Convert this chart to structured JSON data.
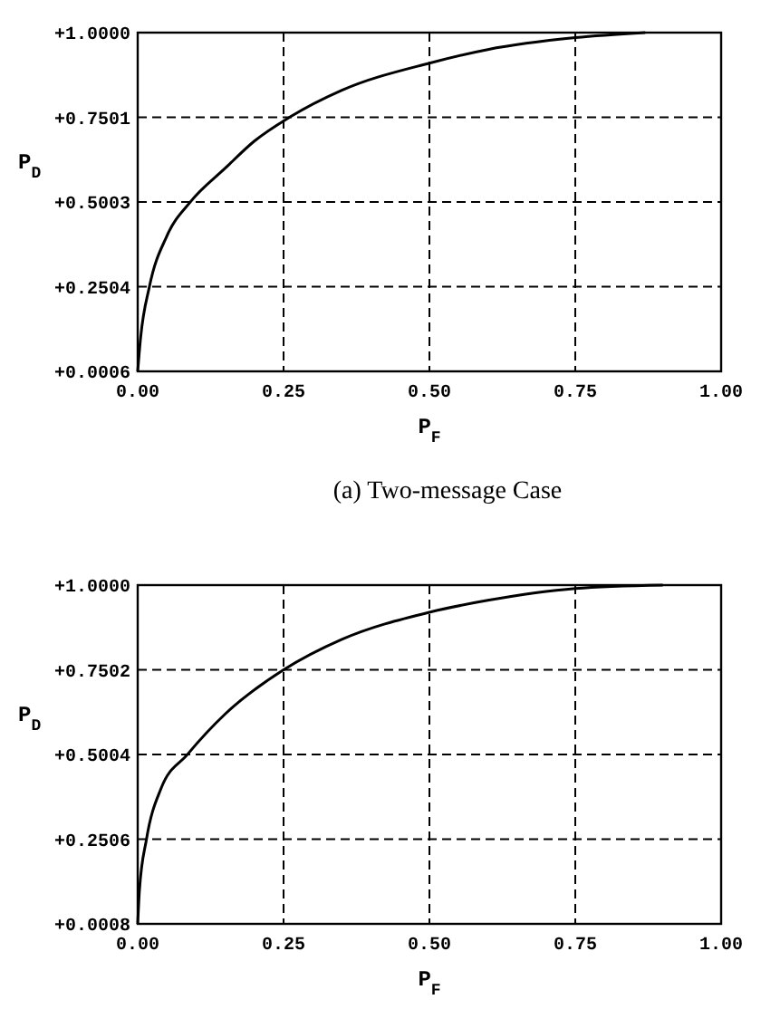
{
  "chart_data": [
    {
      "type": "line",
      "xlabel": "P$_{F}$",
      "ylabel": "P$_{D}$",
      "annotations": [
        "(a)  Two-message Case"
      ],
      "xlim": [
        0,
        1
      ],
      "ylim": [
        0.0006,
        1.0
      ],
      "xticks": [
        {
          "value": 0,
          "label": "0.00"
        },
        {
          "value": 0.25,
          "label": "0.25"
        },
        {
          "value": 0.5,
          "label": "0.50"
        },
        {
          "value": 0.75,
          "label": "0.75"
        },
        {
          "value": 1,
          "label": "1.00"
        }
      ],
      "yticks": [
        {
          "value": 0.0006,
          "label": "+0.0006"
        },
        {
          "value": 0.2504,
          "label": "+0.2504"
        },
        {
          "value": 0.5003,
          "label": "+0.5003"
        },
        {
          "value": 0.7501,
          "label": "+0.7501"
        },
        {
          "value": 1.0,
          "label": "+1.0000"
        }
      ],
      "grid": true,
      "line_style": "solid",
      "marker": "none",
      "series": [
        {
          "color": "#000000",
          "x": [
            0,
            0.005,
            0.02,
            0.05,
            0.09,
            0.15,
            0.2,
            0.26,
            0.35,
            0.5,
            0.6,
            0.75,
            0.87
          ],
          "values": [
            0.0006,
            0.1,
            0.25,
            0.4,
            0.5,
            0.6,
            0.68,
            0.75,
            0.83,
            0.91,
            0.95,
            0.985,
            1.0
          ]
        }
      ]
    },
    {
      "type": "line",
      "xlabel": "P$_{F}$",
      "ylabel": "P$_{D}$",
      "xlim": [
        0,
        1
      ],
      "ylim": [
        0.0008,
        1.0
      ],
      "xticks": [
        {
          "value": 0,
          "label": "0.00"
        },
        {
          "value": 0.25,
          "label": "0.25"
        },
        {
          "value": 0.5,
          "label": "0.50"
        },
        {
          "value": 0.75,
          "label": "0.75"
        },
        {
          "value": 1,
          "label": "1.00"
        }
      ],
      "yticks": [
        {
          "value": 0.0008,
          "label": "+0.0008"
        },
        {
          "value": 0.2506,
          "label": "+0.2506"
        },
        {
          "value": 0.5004,
          "label": "+0.5004"
        },
        {
          "value": 0.7502,
          "label": "+0.7502"
        },
        {
          "value": 1.0,
          "label": "+1.0000"
        }
      ],
      "grid": true,
      "line_style": "solid",
      "marker": "none",
      "series": [
        {
          "color": "#000000",
          "x": [
            0,
            0.003,
            0.015,
            0.04,
            0.085,
            0.15,
            0.25,
            0.35,
            0.5,
            0.6,
            0.75,
            0.9
          ],
          "values": [
            0.0008,
            0.1,
            0.25,
            0.4,
            0.5,
            0.62,
            0.75,
            0.84,
            0.92,
            0.955,
            0.99,
            1.0
          ]
        }
      ]
    }
  ]
}
